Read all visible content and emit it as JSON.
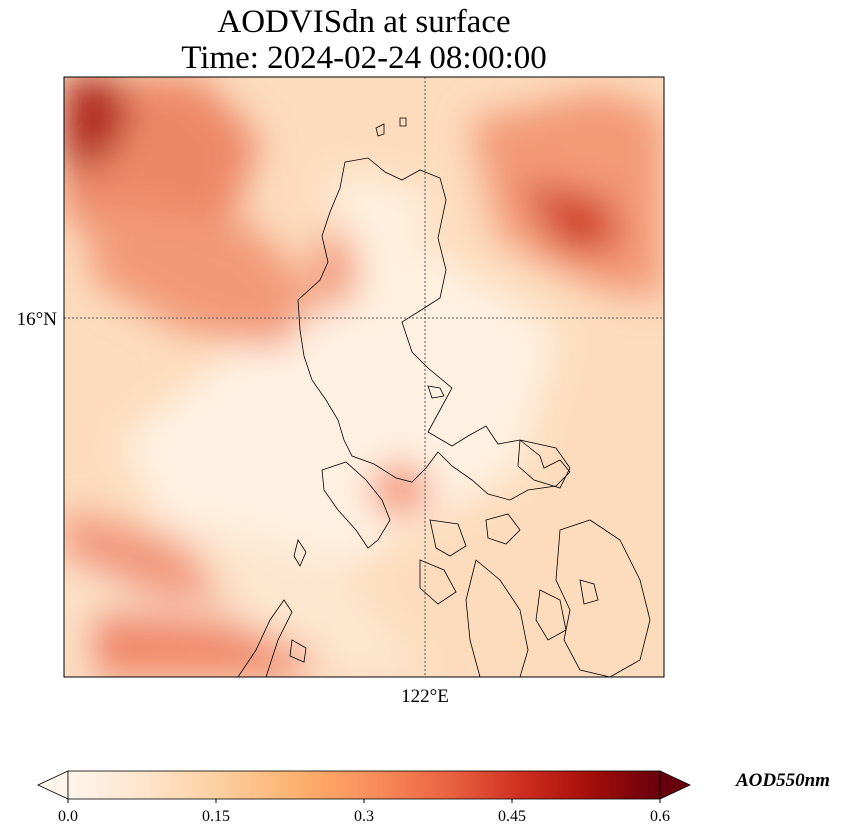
{
  "title_line1": "AODVISdn at surface",
  "title_line2": "Time: 2024-02-24 08:00:00",
  "map": {
    "lat_label": "16°N",
    "lon_label": "122°E"
  },
  "colorbar": {
    "label": "AOD550nm",
    "min": 0.0,
    "max": 0.6,
    "ticks": [
      "0.0",
      "0.15",
      "0.3",
      "0.45",
      "0.6"
    ],
    "colors": [
      "#fff5eb",
      "#fee6ce",
      "#fdd0a2",
      "#fdae6b",
      "#fd8d3c",
      "#f16913",
      "#d94801",
      "#a50f15",
      "#67000d"
    ]
  },
  "chart_data": {
    "type": "heatmap",
    "title": "AODVISdn at surface",
    "subtitle": "Time: 2024-02-24 08:00:00",
    "colorbar_label": "AOD550nm",
    "value_range": [
      0.0,
      0.6
    ],
    "gridlines": {
      "lat": [
        "16°N"
      ],
      "lon": [
        "122°E"
      ]
    }
  }
}
